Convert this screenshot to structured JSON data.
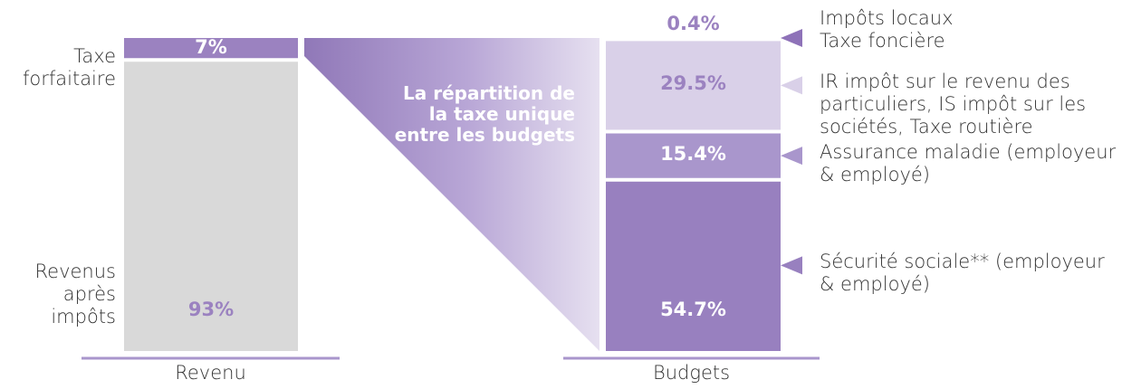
{
  "chart_data": {
    "type": "stacked_bar",
    "annotation": "La répartition de la taxe unique entre les budgets",
    "bars": [
      {
        "category": "Revenu",
        "names": [
          "Taxe forfaitaire",
          "Revenus après impôts"
        ],
        "values": [
          7,
          93
        ],
        "value_labels": [
          "7%",
          "93%"
        ],
        "colors": [
          "#9b82c0",
          "#d9d9d9"
        ],
        "label_colors": [
          "#ffffff",
          "#9b82c0"
        ]
      },
      {
        "category": "Budgets",
        "names": [
          "Impôts locaux Taxe foncière",
          "IR impôt sur le revenu des particuliers, IS impôt sur les sociétés, Taxe routière",
          "Assurance maladie (employeur & employé)",
          "Sécurité sociale** (employeur & employé)"
        ],
        "values": [
          0.4,
          29.5,
          15.4,
          54.7
        ],
        "value_labels": [
          "0.4%",
          "29.5%",
          "15.4%",
          "54.7%"
        ],
        "colors": [
          "#8e72b8",
          "#d9d0e8",
          "#a996cc",
          "#9880bf"
        ],
        "label_colors": [
          "#9b82c0",
          "#9b82c0",
          "#ffffff",
          "#ffffff"
        ]
      }
    ]
  }
}
